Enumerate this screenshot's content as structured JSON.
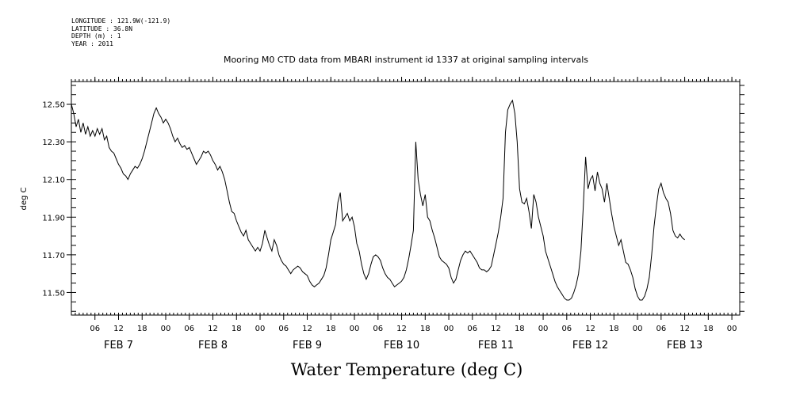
{
  "meta": {
    "longitude": "LONGITUDE : 121.9W(-121.9)",
    "latitude": "LATITUDE : 36.8N",
    "depth": "DEPTH (m) : 1",
    "year": "YEAR : 2011"
  },
  "chart_data": {
    "type": "line",
    "title": "Mooring M0 CTD data from MBARI instrument id 1337 at original sampling intervals",
    "ylabel": "deg C",
    "xlabel": "",
    "footer": "Water Temperature (deg C)",
    "ylim": [
      11.38,
      12.62
    ],
    "yticks": [
      "12.50",
      "12.30",
      "12.10",
      "11.90",
      "11.70",
      "11.50"
    ],
    "xlim_hours": [
      0,
      170
    ],
    "hour_ticks": [
      "06",
      "12",
      "18",
      "00",
      "06",
      "12",
      "18",
      "00",
      "06",
      "12",
      "18",
      "00",
      "06",
      "12",
      "18",
      "00",
      "06",
      "12",
      "18",
      "00",
      "06",
      "12",
      "18",
      "00",
      "06",
      "12",
      "18",
      "00"
    ],
    "date_labels": [
      "FEB  7",
      "FEB  8",
      "FEB  9",
      "FEB 10",
      "FEB 11",
      "FEB 12",
      "FEB 13"
    ],
    "series": [
      {
        "color": "#000000",
        "points": [
          [
            0.0,
            12.5
          ],
          [
            0.6,
            12.45
          ],
          [
            1.2,
            12.38
          ],
          [
            1.8,
            12.42
          ],
          [
            2.4,
            12.35
          ],
          [
            3.0,
            12.4
          ],
          [
            3.6,
            12.34
          ],
          [
            4.2,
            12.38
          ],
          [
            4.8,
            12.33
          ],
          [
            5.4,
            12.36
          ],
          [
            6.0,
            12.33
          ],
          [
            6.6,
            12.37
          ],
          [
            7.2,
            12.34
          ],
          [
            7.8,
            12.37
          ],
          [
            8.4,
            12.31
          ],
          [
            9.0,
            12.33
          ],
          [
            9.6,
            12.27
          ],
          [
            10.2,
            12.25
          ],
          [
            10.8,
            12.24
          ],
          [
            11.4,
            12.21
          ],
          [
            12.0,
            12.18
          ],
          [
            12.6,
            12.16
          ],
          [
            13.2,
            12.13
          ],
          [
            13.8,
            12.12
          ],
          [
            14.4,
            12.1
          ],
          [
            15.0,
            12.13
          ],
          [
            15.6,
            12.15
          ],
          [
            16.2,
            12.17
          ],
          [
            16.8,
            12.16
          ],
          [
            17.4,
            12.18
          ],
          [
            18.0,
            12.21
          ],
          [
            18.6,
            12.25
          ],
          [
            19.2,
            12.3
          ],
          [
            19.8,
            12.35
          ],
          [
            20.4,
            12.4
          ],
          [
            21.0,
            12.45
          ],
          [
            21.6,
            12.48
          ],
          [
            22.2,
            12.45
          ],
          [
            22.8,
            12.43
          ],
          [
            23.4,
            12.4
          ],
          [
            24.0,
            12.42
          ],
          [
            24.6,
            12.4
          ],
          [
            25.2,
            12.37
          ],
          [
            25.8,
            12.33
          ],
          [
            26.4,
            12.3
          ],
          [
            27.0,
            12.32
          ],
          [
            27.6,
            12.29
          ],
          [
            28.2,
            12.27
          ],
          [
            28.8,
            12.28
          ],
          [
            29.4,
            12.26
          ],
          [
            30.0,
            12.27
          ],
          [
            30.6,
            12.24
          ],
          [
            31.2,
            12.21
          ],
          [
            31.8,
            12.18
          ],
          [
            32.4,
            12.2
          ],
          [
            33.0,
            12.22
          ],
          [
            33.6,
            12.25
          ],
          [
            34.2,
            12.24
          ],
          [
            34.8,
            12.25
          ],
          [
            35.4,
            12.23
          ],
          [
            36.0,
            12.2
          ],
          [
            36.6,
            12.18
          ],
          [
            37.2,
            12.15
          ],
          [
            37.8,
            12.17
          ],
          [
            38.4,
            12.14
          ],
          [
            39.0,
            12.1
          ],
          [
            39.6,
            12.04
          ],
          [
            40.2,
            11.98
          ],
          [
            40.8,
            11.93
          ],
          [
            41.4,
            11.92
          ],
          [
            42.0,
            11.88
          ],
          [
            42.6,
            11.85
          ],
          [
            43.2,
            11.82
          ],
          [
            43.8,
            11.8
          ],
          [
            44.4,
            11.83
          ],
          [
            45.0,
            11.78
          ],
          [
            45.6,
            11.76
          ],
          [
            46.2,
            11.74
          ],
          [
            46.8,
            11.72
          ],
          [
            47.4,
            11.74
          ],
          [
            48.0,
            11.72
          ],
          [
            48.6,
            11.76
          ],
          [
            49.2,
            11.83
          ],
          [
            49.8,
            11.79
          ],
          [
            50.4,
            11.75
          ],
          [
            51.0,
            11.72
          ],
          [
            51.6,
            11.78
          ],
          [
            52.2,
            11.75
          ],
          [
            52.8,
            11.7
          ],
          [
            53.4,
            11.67
          ],
          [
            54.0,
            11.65
          ],
          [
            54.6,
            11.64
          ],
          [
            55.2,
            11.62
          ],
          [
            55.8,
            11.6
          ],
          [
            56.4,
            11.62
          ],
          [
            57.0,
            11.63
          ],
          [
            57.6,
            11.64
          ],
          [
            58.2,
            11.63
          ],
          [
            58.8,
            11.61
          ],
          [
            59.4,
            11.6
          ],
          [
            60.0,
            11.59
          ],
          [
            60.6,
            11.56
          ],
          [
            61.2,
            11.54
          ],
          [
            61.8,
            11.53
          ],
          [
            62.4,
            11.54
          ],
          [
            63.0,
            11.55
          ],
          [
            63.6,
            11.57
          ],
          [
            64.2,
            11.59
          ],
          [
            64.8,
            11.63
          ],
          [
            65.4,
            11.7
          ],
          [
            66.0,
            11.78
          ],
          [
            66.6,
            11.82
          ],
          [
            67.2,
            11.86
          ],
          [
            67.8,
            11.98
          ],
          [
            68.4,
            12.03
          ],
          [
            69.0,
            11.88
          ],
          [
            69.6,
            11.9
          ],
          [
            70.2,
            11.92
          ],
          [
            70.8,
            11.88
          ],
          [
            71.4,
            11.9
          ],
          [
            72.0,
            11.85
          ],
          [
            72.6,
            11.76
          ],
          [
            73.2,
            11.72
          ],
          [
            73.8,
            11.65
          ],
          [
            74.4,
            11.6
          ],
          [
            75.0,
            11.57
          ],
          [
            75.6,
            11.6
          ],
          [
            76.2,
            11.65
          ],
          [
            76.8,
            11.69
          ],
          [
            77.4,
            11.7
          ],
          [
            78.0,
            11.69
          ],
          [
            78.6,
            11.67
          ],
          [
            79.2,
            11.63
          ],
          [
            79.8,
            11.6
          ],
          [
            80.4,
            11.58
          ],
          [
            81.0,
            11.57
          ],
          [
            81.6,
            11.55
          ],
          [
            82.2,
            11.53
          ],
          [
            82.8,
            11.54
          ],
          [
            83.4,
            11.55
          ],
          [
            84.0,
            11.56
          ],
          [
            84.6,
            11.58
          ],
          [
            85.2,
            11.62
          ],
          [
            85.8,
            11.68
          ],
          [
            86.4,
            11.75
          ],
          [
            87.0,
            11.83
          ],
          [
            87.6,
            12.3
          ],
          [
            88.2,
            12.1
          ],
          [
            88.8,
            12.02
          ],
          [
            89.4,
            11.96
          ],
          [
            90.0,
            12.02
          ],
          [
            90.6,
            11.9
          ],
          [
            91.2,
            11.88
          ],
          [
            91.8,
            11.83
          ],
          [
            92.4,
            11.79
          ],
          [
            93.0,
            11.74
          ],
          [
            93.6,
            11.69
          ],
          [
            94.2,
            11.67
          ],
          [
            94.8,
            11.66
          ],
          [
            95.4,
            11.65
          ],
          [
            96.0,
            11.63
          ],
          [
            96.6,
            11.58
          ],
          [
            97.2,
            11.55
          ],
          [
            97.8,
            11.57
          ],
          [
            98.4,
            11.62
          ],
          [
            99.0,
            11.67
          ],
          [
            99.6,
            11.7
          ],
          [
            100.2,
            11.72
          ],
          [
            100.8,
            11.71
          ],
          [
            101.4,
            11.72
          ],
          [
            102.0,
            11.7
          ],
          [
            102.6,
            11.68
          ],
          [
            103.2,
            11.66
          ],
          [
            103.8,
            11.63
          ],
          [
            104.4,
            11.62
          ],
          [
            105.0,
            11.62
          ],
          [
            105.6,
            11.61
          ],
          [
            106.2,
            11.62
          ],
          [
            106.8,
            11.64
          ],
          [
            107.4,
            11.7
          ],
          [
            108.0,
            11.76
          ],
          [
            108.6,
            11.82
          ],
          [
            109.2,
            11.9
          ],
          [
            109.8,
            12.0
          ],
          [
            110.4,
            12.35
          ],
          [
            111.0,
            12.47
          ],
          [
            111.6,
            12.5
          ],
          [
            112.2,
            12.52
          ],
          [
            112.8,
            12.45
          ],
          [
            113.4,
            12.3
          ],
          [
            114.0,
            12.05
          ],
          [
            114.6,
            11.98
          ],
          [
            115.2,
            11.97
          ],
          [
            115.8,
            12.0
          ],
          [
            116.4,
            11.93
          ],
          [
            117.0,
            11.84
          ],
          [
            117.6,
            12.02
          ],
          [
            118.2,
            11.98
          ],
          [
            118.8,
            11.9
          ],
          [
            119.4,
            11.85
          ],
          [
            120.0,
            11.8
          ],
          [
            120.6,
            11.72
          ],
          [
            121.2,
            11.68
          ],
          [
            121.8,
            11.64
          ],
          [
            122.4,
            11.6
          ],
          [
            123.0,
            11.56
          ],
          [
            123.6,
            11.53
          ],
          [
            124.2,
            11.51
          ],
          [
            124.8,
            11.49
          ],
          [
            125.4,
            11.47
          ],
          [
            126.0,
            11.46
          ],
          [
            126.6,
            11.46
          ],
          [
            127.2,
            11.47
          ],
          [
            127.8,
            11.5
          ],
          [
            128.4,
            11.54
          ],
          [
            129.0,
            11.6
          ],
          [
            129.6,
            11.72
          ],
          [
            130.2,
            11.95
          ],
          [
            130.8,
            12.22
          ],
          [
            131.4,
            12.05
          ],
          [
            132.0,
            12.1
          ],
          [
            132.6,
            12.12
          ],
          [
            133.2,
            12.04
          ],
          [
            133.8,
            12.14
          ],
          [
            134.4,
            12.08
          ],
          [
            135.0,
            12.05
          ],
          [
            135.6,
            11.98
          ],
          [
            136.2,
            12.08
          ],
          [
            136.8,
            12.0
          ],
          [
            137.4,
            11.92
          ],
          [
            138.0,
            11.85
          ],
          [
            138.6,
            11.8
          ],
          [
            139.2,
            11.75
          ],
          [
            139.8,
            11.78
          ],
          [
            140.4,
            11.72
          ],
          [
            141.0,
            11.66
          ],
          [
            141.6,
            11.65
          ],
          [
            142.2,
            11.62
          ],
          [
            142.8,
            11.58
          ],
          [
            143.4,
            11.52
          ],
          [
            144.0,
            11.48
          ],
          [
            144.6,
            11.46
          ],
          [
            145.2,
            11.46
          ],
          [
            145.8,
            11.48
          ],
          [
            146.4,
            11.52
          ],
          [
            147.0,
            11.58
          ],
          [
            147.6,
            11.7
          ],
          [
            148.2,
            11.85
          ],
          [
            148.8,
            11.96
          ],
          [
            149.4,
            12.05
          ],
          [
            150.0,
            12.08
          ],
          [
            150.6,
            12.03
          ],
          [
            151.2,
            12.0
          ],
          [
            151.8,
            11.98
          ],
          [
            152.4,
            11.92
          ],
          [
            153.0,
            11.83
          ],
          [
            153.6,
            11.8
          ],
          [
            154.2,
            11.79
          ],
          [
            154.8,
            11.81
          ],
          [
            155.4,
            11.79
          ],
          [
            156.0,
            11.78
          ]
        ]
      }
    ]
  }
}
